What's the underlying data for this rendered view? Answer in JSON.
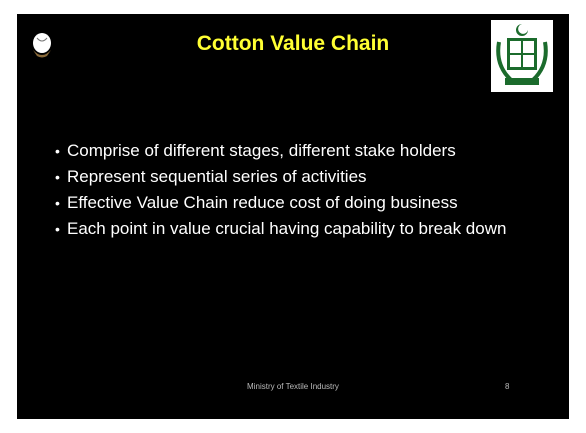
{
  "title": "Cotton Value Chain",
  "bullets": [
    "Comprise of different stages, different stake holders",
    "Represent sequential series of activities",
    "Effective Value Chain reduce cost of doing business",
    "Each point in value crucial having capability to break down"
  ],
  "footer": "Ministry of Textile Industry",
  "page_number": "8"
}
